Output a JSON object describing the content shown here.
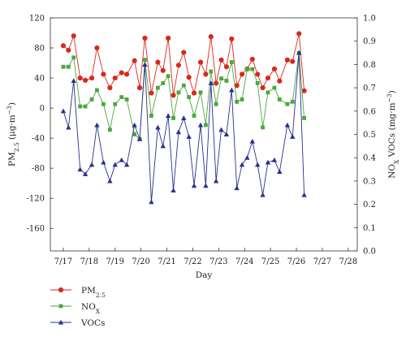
{
  "chart_data": {
    "type": "line",
    "xlabel": "Day",
    "x_tick_labels": [
      "7/17",
      "7/18",
      "7/19",
      "7/20",
      "7/21",
      "7/22",
      "7/23",
      "7/24",
      "7/25",
      "7/26",
      "7/27",
      "7/28"
    ],
    "x_range": [
      16.5,
      28.35
    ],
    "y_left": {
      "label_main": "PM",
      "label_sub": "2.5",
      "label_units": "(μg·m",
      "label_exp": "−3",
      "label_close": ")",
      "range": [
        -190,
        120
      ],
      "ticks": [
        120,
        80,
        40,
        0,
        -40,
        -80,
        -120,
        -160
      ]
    },
    "y_right": {
      "label": "NO",
      "label_sub": "X",
      "label_rest": " VOCs (mg·m",
      "label_exp": "−3",
      "label_close": ")",
      "range": [
        0.0,
        1.0
      ],
      "ticks": [
        "1.0",
        "0.9",
        "0.8",
        "0.7",
        "0.6",
        "0.5",
        "0.4",
        "0.3",
        "0.2",
        "0.1",
        "0.0"
      ]
    },
    "grid": false,
    "legend_position": "bottom-left",
    "series": [
      {
        "name": "PM",
        "name_sub": "2.5",
        "axis": "left",
        "color": "#d9291c",
        "marker": "circle",
        "points": [
          [
            17.0,
            83
          ],
          [
            17.2,
            77
          ],
          [
            17.4,
            96
          ],
          [
            17.65,
            40
          ],
          [
            17.85,
            37
          ],
          [
            18.1,
            40
          ],
          [
            18.3,
            80
          ],
          [
            18.55,
            45
          ],
          [
            18.8,
            27
          ],
          [
            19.0,
            40
          ],
          [
            19.25,
            47
          ],
          [
            19.45,
            45
          ],
          [
            19.75,
            63
          ],
          [
            19.95,
            27
          ],
          [
            20.15,
            93
          ],
          [
            20.4,
            20
          ],
          [
            20.65,
            61
          ],
          [
            20.85,
            50
          ],
          [
            21.05,
            93
          ],
          [
            21.25,
            17
          ],
          [
            21.45,
            57
          ],
          [
            21.65,
            74
          ],
          [
            21.85,
            41
          ],
          [
            22.05,
            20
          ],
          [
            22.3,
            61
          ],
          [
            22.5,
            45
          ],
          [
            22.7,
            95
          ],
          [
            22.9,
            33
          ],
          [
            23.1,
            64
          ],
          [
            23.3,
            55
          ],
          [
            23.5,
            92
          ],
          [
            23.7,
            30
          ],
          [
            23.9,
            45
          ],
          [
            24.1,
            52
          ],
          [
            24.3,
            65
          ],
          [
            24.5,
            45
          ],
          [
            24.7,
            27
          ],
          [
            24.9,
            40
          ],
          [
            25.15,
            52
          ],
          [
            25.35,
            36
          ],
          [
            25.65,
            64
          ],
          [
            25.85,
            62
          ],
          [
            26.1,
            99
          ],
          [
            26.3,
            23
          ]
        ]
      },
      {
        "name": "NO",
        "name_sub": "X",
        "axis": "right",
        "color": "#4aa83c",
        "marker": "square",
        "points": [
          [
            17.0,
            0.79
          ],
          [
            17.2,
            0.79
          ],
          [
            17.4,
            0.83
          ],
          [
            17.65,
            0.62
          ],
          [
            17.85,
            0.62
          ],
          [
            18.1,
            0.65
          ],
          [
            18.3,
            0.69
          ],
          [
            18.55,
            0.63
          ],
          [
            18.8,
            0.52
          ],
          [
            19.0,
            0.63
          ],
          [
            19.25,
            0.66
          ],
          [
            19.45,
            0.65
          ],
          [
            19.75,
            0.5
          ],
          [
            19.95,
            0.48
          ],
          [
            20.15,
            0.82
          ],
          [
            20.4,
            0.58
          ],
          [
            20.65,
            0.7
          ],
          [
            20.85,
            0.72
          ],
          [
            21.05,
            0.75
          ],
          [
            21.25,
            0.57
          ],
          [
            21.45,
            0.68
          ],
          [
            21.65,
            0.71
          ],
          [
            21.85,
            0.66
          ],
          [
            22.05,
            0.58
          ],
          [
            22.3,
            0.68
          ],
          [
            22.5,
            0.54
          ],
          [
            22.7,
            0.77
          ],
          [
            22.9,
            0.63
          ],
          [
            23.1,
            0.74
          ],
          [
            23.3,
            0.73
          ],
          [
            23.5,
            0.81
          ],
          [
            23.7,
            0.64
          ],
          [
            23.9,
            0.65
          ],
          [
            24.1,
            0.78
          ],
          [
            24.3,
            0.78
          ],
          [
            24.5,
            0.72
          ],
          [
            24.7,
            0.53
          ],
          [
            24.9,
            0.68
          ],
          [
            25.15,
            0.7
          ],
          [
            25.35,
            0.65
          ],
          [
            25.65,
            0.63
          ],
          [
            25.85,
            0.64
          ],
          [
            26.1,
            0.85
          ],
          [
            26.3,
            0.57
          ]
        ]
      },
      {
        "name": "VOCs",
        "axis": "right",
        "color": "#2a2f8f",
        "marker": "triangle",
        "points": [
          [
            17.0,
            0.6
          ],
          [
            17.2,
            0.53
          ],
          [
            17.4,
            0.73
          ],
          [
            17.65,
            0.35
          ],
          [
            17.85,
            0.33
          ],
          [
            18.1,
            0.37
          ],
          [
            18.3,
            0.54
          ],
          [
            18.55,
            0.38
          ],
          [
            18.8,
            0.3
          ],
          [
            19.0,
            0.37
          ],
          [
            19.25,
            0.39
          ],
          [
            19.45,
            0.37
          ],
          [
            19.75,
            0.54
          ],
          [
            19.95,
            0.48
          ],
          [
            20.15,
            0.8
          ],
          [
            20.4,
            0.21
          ],
          [
            20.65,
            0.53
          ],
          [
            20.85,
            0.45
          ],
          [
            21.05,
            0.58
          ],
          [
            21.25,
            0.26
          ],
          [
            21.45,
            0.51
          ],
          [
            21.65,
            0.57
          ],
          [
            21.85,
            0.49
          ],
          [
            22.05,
            0.28
          ],
          [
            22.3,
            0.54
          ],
          [
            22.5,
            0.28
          ],
          [
            22.7,
            0.72
          ],
          [
            22.9,
            0.3
          ],
          [
            23.1,
            0.52
          ],
          [
            23.3,
            0.5
          ],
          [
            23.5,
            0.69
          ],
          [
            23.7,
            0.27
          ],
          [
            23.9,
            0.37
          ],
          [
            24.1,
            0.4
          ],
          [
            24.3,
            0.47
          ],
          [
            24.5,
            0.37
          ],
          [
            24.7,
            0.24
          ],
          [
            24.9,
            0.38
          ],
          [
            25.15,
            0.39
          ],
          [
            25.35,
            0.34
          ],
          [
            25.65,
            0.54
          ],
          [
            25.85,
            0.49
          ],
          [
            26.1,
            0.85
          ],
          [
            26.3,
            0.24
          ]
        ]
      }
    ]
  }
}
